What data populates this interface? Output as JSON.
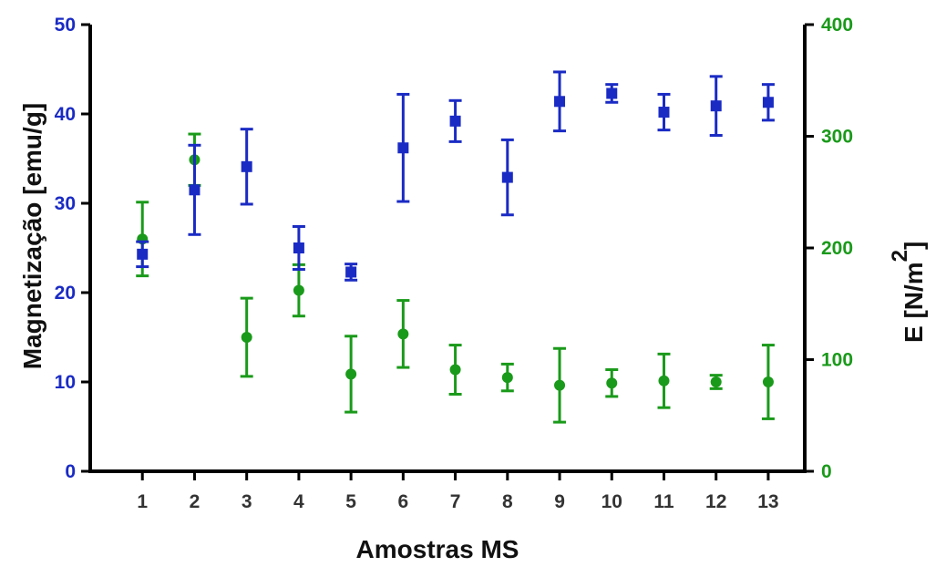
{
  "chart_data": {
    "type": "scatter",
    "x": [
      1,
      2,
      3,
      4,
      5,
      6,
      7,
      8,
      9,
      10,
      11,
      12,
      13
    ],
    "xlabel": "Amostras MS",
    "ylabel_left": "Magnetização [emu/g]",
    "ylabel_right_main": "E [N/m",
    "ylabel_right_sup": "2",
    "ylabel_right_close": "]",
    "ylim_left": [
      0,
      50
    ],
    "ylim_right": [
      0,
      400
    ],
    "yticks_left": [
      0,
      10,
      20,
      30,
      40,
      50
    ],
    "yticks_right": [
      0,
      100,
      200,
      300,
      400
    ],
    "xlim": [
      0,
      13.7
    ],
    "grid": false,
    "series": [
      {
        "axis": "left",
        "marker": "square",
        "color": "#1a2bc4",
        "values": [
          24.3,
          31.5,
          34.1,
          25.0,
          22.3,
          36.2,
          39.2,
          32.9,
          41.4,
          42.3,
          40.2,
          40.9,
          41.3
        ],
        "err": [
          1.4,
          5.0,
          4.2,
          2.4,
          0.9,
          6.0,
          2.3,
          4.2,
          3.3,
          1.0,
          2.0,
          3.3,
          2.0
        ]
      },
      {
        "axis": "right",
        "marker": "circle",
        "color": "#1a9a1a",
        "values": [
          208,
          279,
          120,
          162,
          87,
          123,
          91,
          84,
          77,
          79,
          81,
          80,
          80
        ],
        "err": [
          33,
          23,
          35,
          23,
          34,
          30,
          22,
          12,
          33,
          12,
          24,
          6,
          33
        ]
      }
    ]
  }
}
